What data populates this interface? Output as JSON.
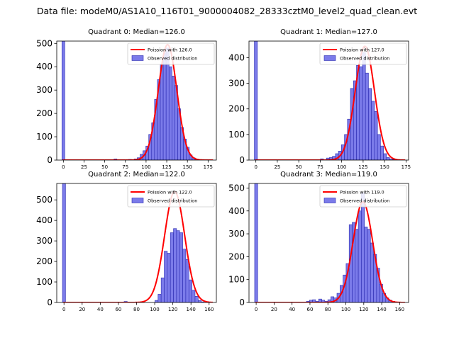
{
  "figure_title": "Data file: modeM0/AS1A10_116T01_9000004082_28333cztM0_level2_quad_clean.evt",
  "colors": {
    "bar_fill": "#7b7bea",
    "bar_edge": "#2b2bb0",
    "poisson_line": "#ff0000"
  },
  "chart_data": [
    {
      "type": "bar",
      "title": "Quadrant 0: Median=126.0",
      "legend": [
        "Poission with 126.0",
        "Observed distribution"
      ],
      "xlim": [
        -8,
        185
      ],
      "ylim": [
        0,
        510
      ],
      "xticks": [
        0,
        25,
        50,
        75,
        100,
        125,
        150,
        175
      ],
      "yticks": [
        0,
        100,
        200,
        300,
        400,
        500
      ],
      "bin_width": 3.5,
      "bars": {
        "x": [
          0,
          3.5,
          63,
          80.5,
          87.5,
          91,
          94.5,
          98,
          101.5,
          105,
          108.5,
          112,
          115.5,
          119,
          122.5,
          126,
          129.5,
          133,
          136.5,
          140,
          143.5,
          147,
          150.5,
          154,
          157.5,
          161,
          164.5
        ],
        "values": [
          515,
          2,
          5,
          3,
          5,
          10,
          25,
          40,
          60,
          110,
          160,
          260,
          345,
          410,
          460,
          480,
          400,
          360,
          320,
          220,
          140,
          90,
          55,
          22,
          10,
          5,
          2
        ]
      },
      "poisson": {
        "mu": 126.0,
        "peak": 495
      }
    },
    {
      "type": "bar",
      "title": "Quadrant 1: Median=127.0",
      "legend": [
        "Poission with 127.0",
        "Observed distribution"
      ],
      "xlim": [
        -8,
        178
      ],
      "ylim": [
        0,
        465
      ],
      "xticks": [
        0,
        25,
        50,
        75,
        100,
        125,
        150,
        175
      ],
      "yticks": [
        0,
        100,
        200,
        300,
        400
      ],
      "bin_width": 3.5,
      "bars": {
        "x": [
          0,
          3.5,
          77,
          84,
          87.5,
          91,
          94.5,
          98,
          101.5,
          105,
          108.5,
          112,
          115.5,
          119,
          122.5,
          126,
          129.5,
          133,
          136.5,
          140,
          143.5,
          147,
          150.5,
          154,
          157.5,
          161,
          164.5
        ],
        "values": [
          470,
          2,
          5,
          8,
          10,
          15,
          25,
          35,
          60,
          100,
          160,
          280,
          310,
          370,
          365,
          420,
          340,
          280,
          230,
          190,
          100,
          55,
          25,
          10,
          5,
          2,
          1
        ]
      },
      "poisson": {
        "mu": 127.0,
        "peak": 445
      }
    },
    {
      "type": "bar",
      "title": "Quadrant 2: Median=122.0",
      "legend": [
        "Poission with 122.0",
        "Observed distribution"
      ],
      "xlim": [
        -8,
        168
      ],
      "ylim": [
        0,
        580
      ],
      "xticks": [
        0,
        20,
        40,
        60,
        80,
        100,
        120,
        140,
        160
      ],
      "yticks": [
        0,
        100,
        200,
        300,
        400,
        500
      ],
      "bin_width": 3.4,
      "bars": {
        "x": [
          0,
          3.4,
          68,
          102,
          105.4,
          108.8,
          112.2,
          115.6,
          119,
          122.4,
          125.8,
          129.2,
          132.6,
          136,
          139.4,
          142.8,
          146.2,
          149.6,
          153
        ],
        "values": [
          580,
          2,
          5,
          10,
          40,
          120,
          250,
          240,
          340,
          360,
          350,
          340,
          260,
          210,
          110,
          60,
          30,
          10,
          3
        ]
      },
      "poisson": {
        "mu": 122.0,
        "peak": 540
      }
    },
    {
      "type": "bar",
      "title": "Quadrant 3: Median=119.0",
      "legend": [
        "Poission with 119.0",
        "Observed distribution"
      ],
      "xlim": [
        -8,
        170
      ],
      "ylim": [
        0,
        520
      ],
      "xticks": [
        0,
        20,
        40,
        60,
        80,
        100,
        120,
        140,
        160
      ],
      "yticks": [
        0,
        100,
        200,
        300,
        400,
        500
      ],
      "bin_width": 3.4,
      "bars": {
        "x": [
          0,
          3.4,
          57.8,
          61.2,
          64.6,
          68,
          71.4,
          74.8,
          78.2,
          81.6,
          85,
          88.4,
          91.8,
          95.2,
          98.6,
          102,
          105.4,
          108.8,
          112.2,
          115.6,
          119,
          122.4,
          125.8,
          129.2,
          132.6,
          136,
          139.4,
          142.8,
          146.2,
          149.6,
          153
        ],
        "values": [
          520,
          2,
          5,
          10,
          12,
          5,
          15,
          10,
          5,
          12,
          25,
          20,
          40,
          75,
          120,
          170,
          340,
          350,
          320,
          400,
          480,
          330,
          320,
          260,
          210,
          150,
          80,
          40,
          20,
          10,
          5
        ]
      },
      "poisson": {
        "mu": 119.0,
        "peak": 440
      }
    }
  ]
}
